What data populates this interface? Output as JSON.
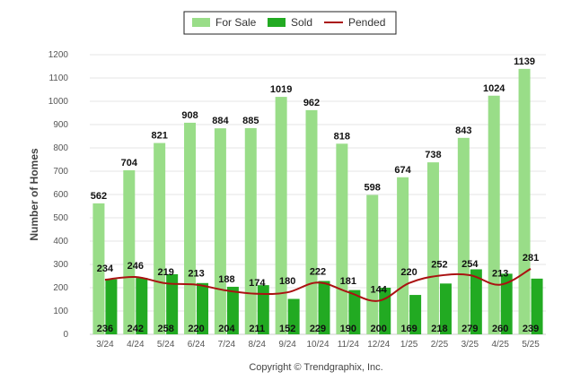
{
  "chart_data": {
    "type": "bar",
    "ylabel": "Number of Homes",
    "ylim": [
      0,
      1200
    ],
    "yticks": [
      0,
      100,
      200,
      300,
      400,
      500,
      600,
      700,
      800,
      900,
      1000,
      1100,
      1200
    ],
    "grid": true,
    "legend_position": "top-center",
    "categories": [
      "3/24",
      "4/24",
      "5/24",
      "6/24",
      "7/24",
      "8/24",
      "9/24",
      "10/24",
      "11/24",
      "12/24",
      "1/25",
      "2/25",
      "3/25",
      "4/25",
      "5/25"
    ],
    "series": [
      {
        "name": "For Sale",
        "type": "bar",
        "color": "#99dd88",
        "values": [
          562,
          704,
          821,
          908,
          884,
          885,
          1019,
          962,
          818,
          598,
          674,
          738,
          843,
          1024,
          1139
        ]
      },
      {
        "name": "Sold",
        "type": "bar",
        "color": "#22aa22",
        "values": [
          236,
          242,
          258,
          220,
          204,
          211,
          152,
          229,
          190,
          200,
          169,
          218,
          279,
          260,
          239
        ]
      },
      {
        "name": "Pended",
        "type": "line",
        "color": "#aa1111",
        "values": [
          234,
          246,
          219,
          213,
          188,
          174,
          180,
          222,
          181,
          144,
          220,
          252,
          254,
          213,
          281
        ]
      }
    ]
  },
  "credit": "Copyright © Trendgraphix, Inc."
}
